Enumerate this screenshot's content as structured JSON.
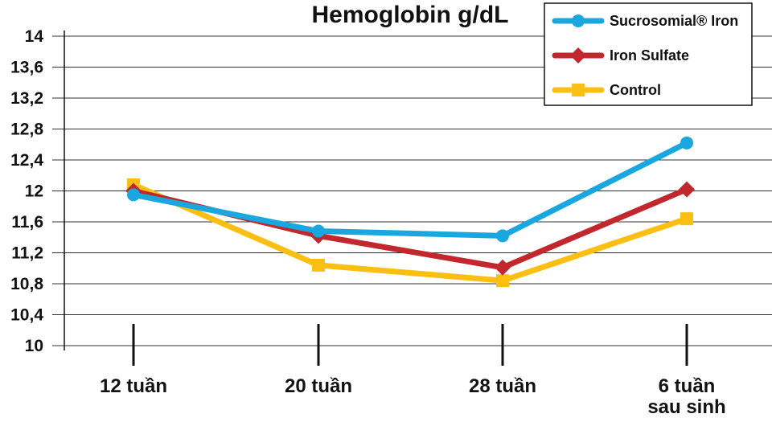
{
  "chart_data": {
    "type": "line",
    "title": "Hemoglobin g/dL",
    "categories": [
      [
        "12 tuần"
      ],
      [
        "20 tuần"
      ],
      [
        "28 tuần"
      ],
      [
        "6 tuần",
        "sau sinh"
      ]
    ],
    "ylim": [
      10,
      14
    ],
    "yticks": [
      "10",
      "10,4",
      "10,8",
      "11,2",
      "11,6",
      "12",
      "12,4",
      "12,8",
      "13,2",
      "13,6",
      "14"
    ],
    "grid": true,
    "legend_position": "top-right",
    "series": [
      {
        "name": "Sucrosomial® Iron",
        "color": "#1aa7e0",
        "marker": "circle",
        "values": [
          11.95,
          11.48,
          11.42,
          12.62
        ]
      },
      {
        "name": "Iron Sulfate",
        "color": "#c1272d",
        "marker": "diamond",
        "values": [
          12.0,
          11.42,
          11.01,
          12.02
        ]
      },
      {
        "name": "Control",
        "color": "#fbbf14",
        "marker": "square",
        "values": [
          12.08,
          11.04,
          10.84,
          11.64
        ]
      }
    ]
  }
}
